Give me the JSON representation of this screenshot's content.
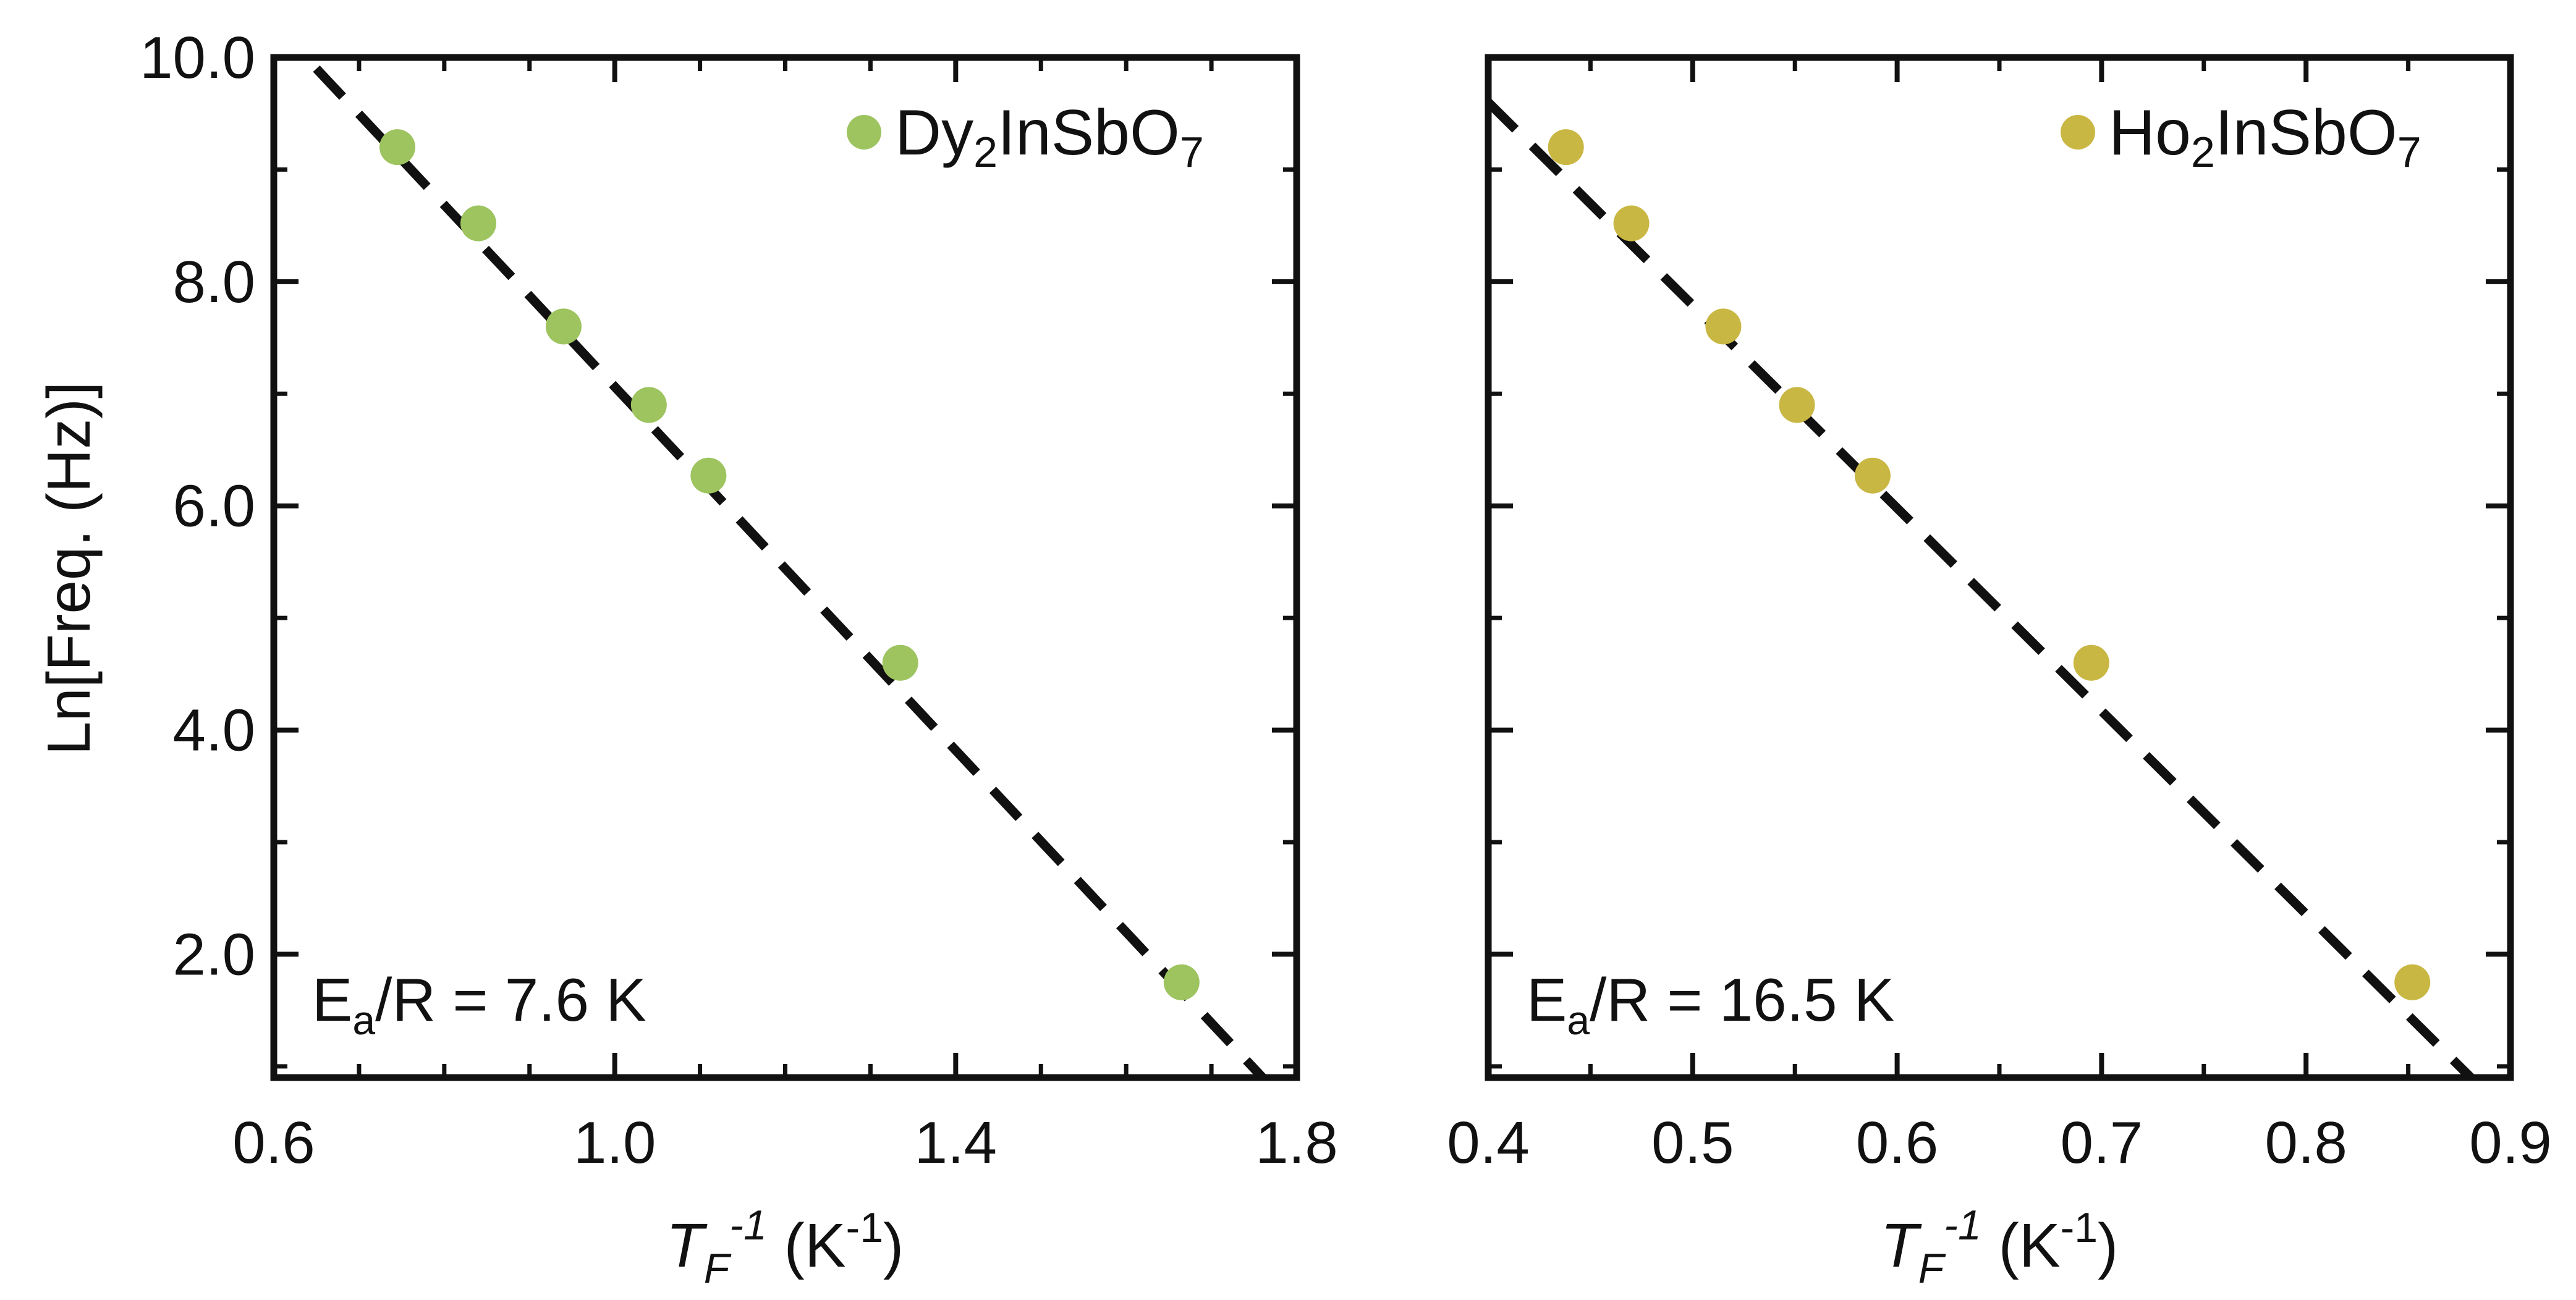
{
  "y_axis_label": "Ln[Freq. (Hz)]",
  "x_axis_label": {
    "main": "T",
    "subscript": "F",
    "exponent": "-1",
    "unit_open": " (K",
    "unit_exponent": "-1",
    "unit_close": ")"
  },
  "colors": {
    "dy_marker": "#9dc45f",
    "ho_marker": "#c9b743",
    "frame": "#111111",
    "fit_line": "#111111"
  },
  "chart_data": [
    {
      "type": "scatter",
      "panel": "left",
      "legend": {
        "position": "top-right",
        "parts": [
          "Dy",
          "2",
          "InSbO",
          "7"
        ]
      },
      "annotation": {
        "position": "bottom-left",
        "parts": [
          "E",
          "a",
          "/R = 7.6 K"
        ]
      },
      "xlim": [
        0.6,
        1.8
      ],
      "ylim": [
        0.9,
        10.0
      ],
      "x_ticks": [
        0.6,
        1.0,
        1.4,
        1.8
      ],
      "x_tick_labels": [
        "0.6",
        "1.0",
        "1.4",
        "1.8"
      ],
      "x_minor_step": 0.1,
      "y_ticks": [
        2.0,
        4.0,
        6.0,
        8.0,
        10.0
      ],
      "y_tick_labels": [
        "2.0",
        "4.0",
        "6.0",
        "8.0",
        "10.0"
      ],
      "y_minor_step": 1.0,
      "series": [
        {
          "name": "Dy2InSbO7",
          "x": [
            0.745,
            0.84,
            0.94,
            1.04,
            1.11,
            1.335,
            1.665
          ],
          "y": [
            9.2,
            8.52,
            7.6,
            6.9,
            6.27,
            4.6,
            1.75
          ]
        }
      ],
      "fit_line": {
        "style": "dashed",
        "x": [
          0.65,
          1.76
        ],
        "y": [
          9.9,
          0.9
        ]
      }
    },
    {
      "type": "scatter",
      "panel": "right",
      "legend": {
        "position": "top-right",
        "parts": [
          "Ho",
          "2",
          "InSbO",
          "7"
        ]
      },
      "annotation": {
        "position": "bottom-left",
        "parts": [
          "E",
          "a",
          "/R = 16.5 K"
        ]
      },
      "xlim": [
        0.4,
        0.9
      ],
      "ylim": [
        0.9,
        10.0
      ],
      "x_ticks": [
        0.4,
        0.5,
        0.6,
        0.7,
        0.8,
        0.9
      ],
      "x_tick_labels": [
        "0.4",
        "0.5",
        "0.6",
        "0.7",
        "0.8",
        "0.9"
      ],
      "x_minor_step": 0.05,
      "y_ticks": [
        2.0,
        4.0,
        6.0,
        8.0,
        10.0
      ],
      "y_tick_labels": [],
      "y_minor_step": 1.0,
      "series": [
        {
          "name": "Ho2InSbO7",
          "x": [
            0.438,
            0.47,
            0.515,
            0.551,
            0.588,
            0.695,
            0.852
          ],
          "y": [
            9.2,
            8.52,
            7.6,
            6.9,
            6.27,
            4.6,
            1.75
          ]
        }
      ],
      "fit_line": {
        "style": "dashed",
        "x": [
          0.4,
          0.8806
        ],
        "y": [
          9.6,
          0.9
        ]
      }
    }
  ]
}
